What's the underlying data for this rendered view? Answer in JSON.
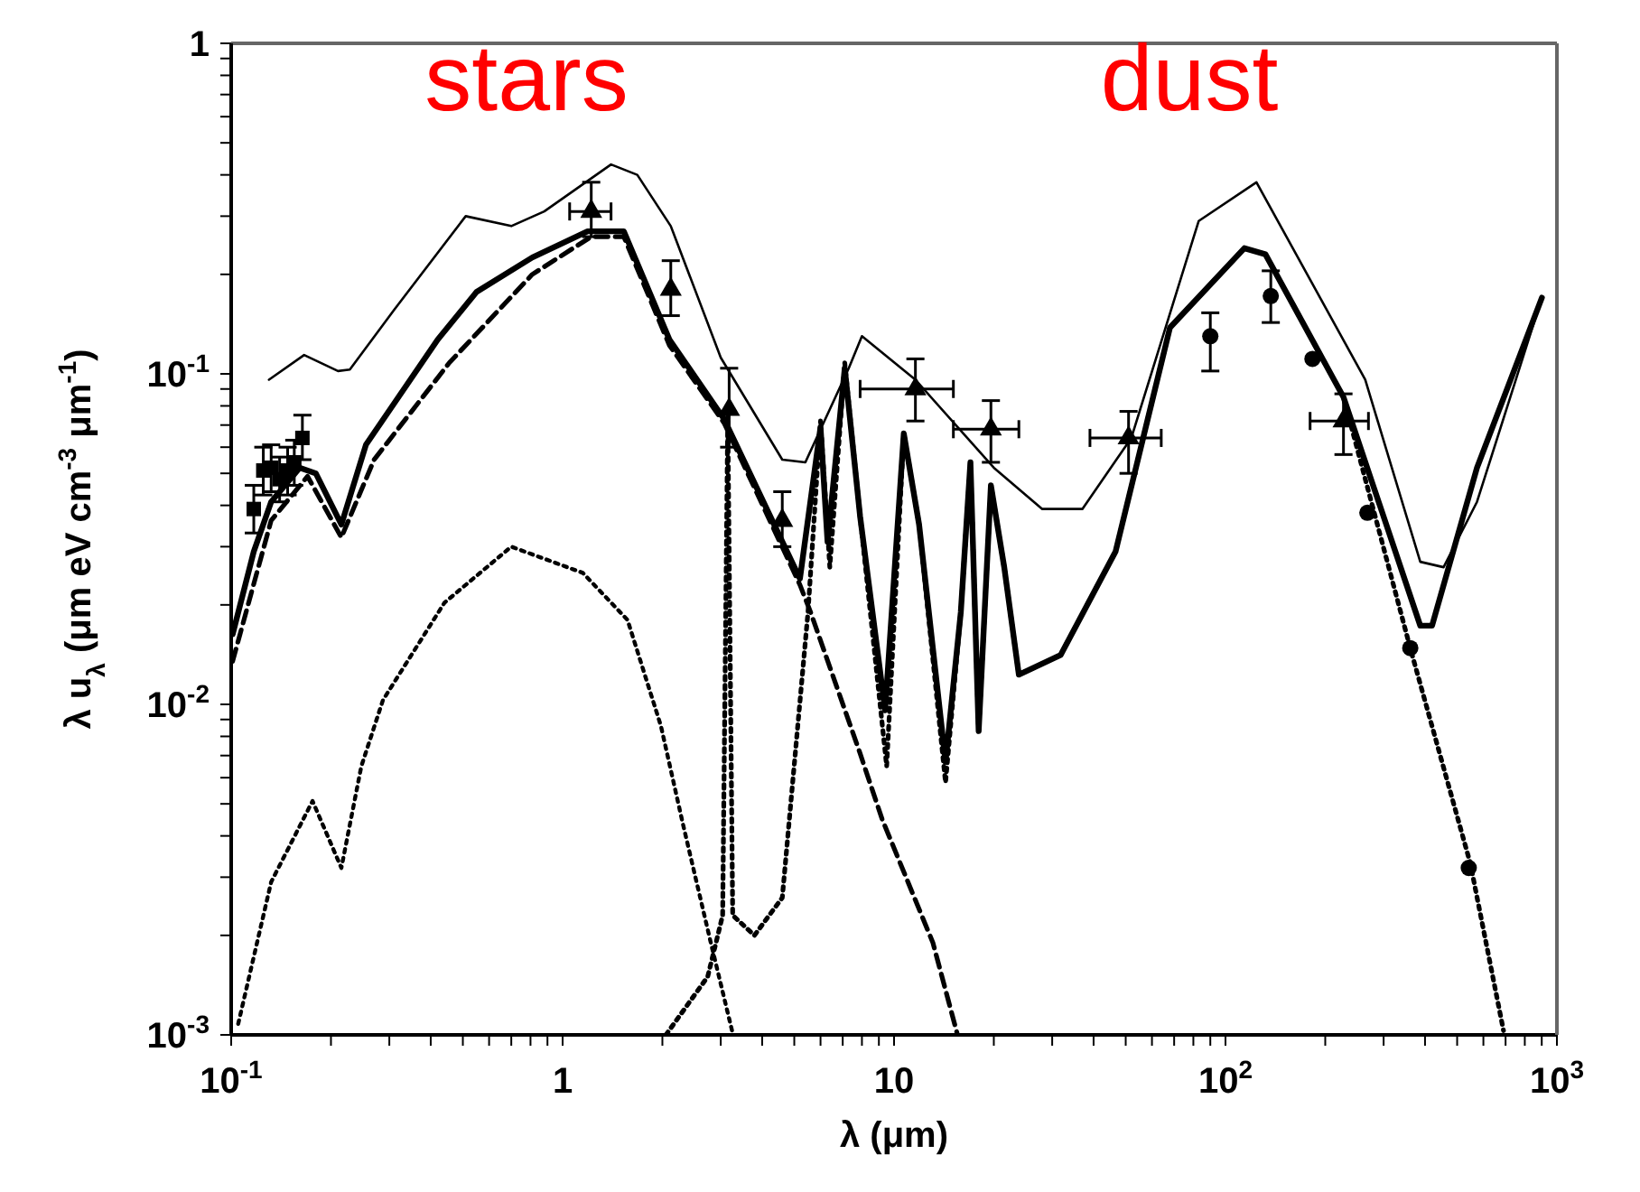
{
  "chart_data": {
    "type": "line",
    "xlabel": "λ (μm)",
    "ylabel": "λ u$_{λ}$ (μm eV cm$^{-3}$ μm$^{-1}$)",
    "log": "xy",
    "xlim": [
      0.1,
      1000
    ],
    "ylim": [
      0.001,
      1
    ],
    "xticks": [
      {
        "value": 0.1,
        "label": "10$^{-1}$"
      },
      {
        "value": 0.2,
        "label": null
      },
      {
        "value": 0.3,
        "label": null
      },
      {
        "value": 0.4,
        "label": null
      },
      {
        "value": 0.5,
        "label": null
      },
      {
        "value": 0.6,
        "label": null
      },
      {
        "value": 0.7,
        "label": null
      },
      {
        "value": 0.8,
        "label": null
      },
      {
        "value": 0.9,
        "label": null
      },
      1,
      {
        "value": 2,
        "label": null
      },
      {
        "value": 3,
        "label": null
      },
      {
        "value": 4,
        "label": null
      },
      {
        "value": 5,
        "label": null
      },
      {
        "value": 6,
        "label": null
      },
      {
        "value": 7,
        "label": null
      },
      {
        "value": 8,
        "label": null
      },
      {
        "value": 9,
        "label": null
      },
      10,
      {
        "value": 20,
        "label": null
      },
      {
        "value": 30,
        "label": null
      },
      {
        "value": 40,
        "label": null
      },
      {
        "value": 50,
        "label": null
      },
      {
        "value": 60,
        "label": null
      },
      {
        "value": 70,
        "label": null
      },
      {
        "value": 80,
        "label": null
      },
      {
        "value": 90,
        "label": null
      },
      {
        "value": 100,
        "label": "10$^{2}$"
      },
      {
        "value": 200,
        "label": null
      },
      {
        "value": 300,
        "label": null
      },
      {
        "value": 400,
        "label": null
      },
      {
        "value": 500,
        "label": null
      },
      {
        "value": 600,
        "label": null
      },
      {
        "value": 700,
        "label": null
      },
      {
        "value": 800,
        "label": null
      },
      {
        "value": 900,
        "label": null
      },
      {
        "value": 1000,
        "label": "10$^{3}$"
      }
    ],
    "yticks": [
      {
        "value": 0.001,
        "label": "10$^{-3}$"
      },
      {
        "value": 0.002,
        "label": null
      },
      {
        "value": 0.003,
        "label": null
      },
      {
        "value": 0.004,
        "label": null
      },
      {
        "value": 0.005,
        "label": null
      },
      {
        "value": 0.006,
        "label": null
      },
      {
        "value": 0.007,
        "label": null
      },
      {
        "value": 0.008,
        "label": null
      },
      {
        "value": 0.009,
        "label": null
      },
      {
        "value": 0.01,
        "label": "10$^{-2}$"
      },
      {
        "value": 0.02,
        "label": null
      },
      {
        "value": 0.03,
        "label": null
      },
      {
        "value": 0.04,
        "label": null
      },
      {
        "value": 0.05,
        "label": null
      },
      {
        "value": 0.06,
        "label": null
      },
      {
        "value": 0.07,
        "label": null
      },
      {
        "value": 0.08,
        "label": null
      },
      {
        "value": 0.09,
        "label": null
      },
      {
        "value": 0.1,
        "label": "10$^{-1}$"
      },
      {
        "value": 0.2,
        "label": null
      },
      {
        "value": 0.3,
        "label": null
      },
      {
        "value": 0.4,
        "label": null
      },
      {
        "value": 0.5,
        "label": null
      },
      {
        "value": 0.6,
        "label": null
      },
      {
        "value": 0.7,
        "label": null
      },
      {
        "value": 0.8,
        "label": null
      },
      {
        "value": 0.9,
        "label": null
      },
      1
    ],
    "annotations": [
      "stars",
      "dust"
    ],
    "series": [
      {
        "color": "#000000",
        "line_style": "solid",
        "marker": "none",
        "x": [
          0.13,
          0.166,
          0.21,
          0.228,
          0.31,
          0.51,
          0.7,
          0.88,
          1.4,
          1.68,
          2.12,
          3.0,
          4.6,
          5.4,
          7.3,
          8.0,
          11.6,
          20,
          28,
          37,
          52,
          83,
          124,
          264,
          387,
          455,
          574,
          901
        ],
        "values": [
          0.096,
          0.114,
          0.102,
          0.103,
          0.156,
          0.3,
          0.28,
          0.31,
          0.43,
          0.4,
          0.28,
          0.112,
          0.055,
          0.054,
          0.104,
          0.13,
          0.096,
          0.052,
          0.039,
          0.039,
          0.064,
          0.29,
          0.38,
          0.096,
          0.027,
          0.026,
          0.041,
          0.17
        ]
      },
      {
        "color": "#000000",
        "line_style": "solid",
        "marker": "none",
        "x": [
          0.101,
          0.117,
          0.132,
          0.161,
          0.18,
          0.215,
          0.255,
          0.42,
          0.55,
          0.81,
          1.19,
          1.53,
          2.1,
          3.07,
          5.2,
          6.0,
          6.3,
          7.1,
          7.9,
          9.4,
          10.7,
          11.9,
          14.3,
          15.9,
          17.0,
          18.0,
          19.6,
          21.5,
          23.8,
          31.8,
          46.6,
          68,
          114,
          132,
          227,
          387,
          420,
          574,
          901
        ],
        "values": [
          0.0163,
          0.029,
          0.041,
          0.052,
          0.05,
          0.035,
          0.061,
          0.127,
          0.177,
          0.225,
          0.27,
          0.27,
          0.127,
          0.073,
          0.024,
          0.069,
          0.031,
          0.104,
          0.037,
          0.0096,
          0.066,
          0.035,
          0.0067,
          0.019,
          0.054,
          0.0083,
          0.046,
          0.026,
          0.0123,
          0.0141,
          0.029,
          0.138,
          0.24,
          0.23,
          0.085,
          0.0173,
          0.0173,
          0.052,
          0.17
        ]
      },
      {
        "color": "#000000",
        "line_style": "dashed",
        "marker": "none",
        "x": [
          0.101,
          0.132,
          0.17,
          0.215,
          0.27,
          0.455,
          0.81,
          1.22,
          1.53,
          2.1,
          3.07,
          5.2,
          5.6,
          7.9,
          9.2,
          13.1,
          15.5
        ],
        "values": [
          0.0135,
          0.036,
          0.049,
          0.032,
          0.055,
          0.108,
          0.2,
          0.26,
          0.26,
          0.122,
          0.071,
          0.023,
          0.019,
          0.0071,
          0.0045,
          0.0019,
          0.00101
        ]
      },
      {
        "color": "#000000",
        "line_style": "dotted",
        "marker": "none",
        "x": [
          0.105,
          0.132,
          0.176,
          0.215,
          0.247,
          0.287,
          0.44,
          0.7,
          1.15,
          1.57,
          1.98,
          2.3,
          2.8,
          3.26
        ],
        "values": [
          0.00108,
          0.0029,
          0.0051,
          0.0032,
          0.0065,
          0.0103,
          0.0203,
          0.03,
          0.025,
          0.018,
          0.0086,
          0.0044,
          0.0019,
          0.00101
        ]
      },
      {
        "color": "#000000",
        "line_style": "dotted",
        "marker": "none",
        "x": [
          2.05,
          2.74,
          3.04,
          3.15,
          3.26,
          3.79,
          4.6,
          5.5,
          6.0,
          6.4,
          7.1,
          7.9,
          9.5,
          10.7,
          11.9,
          14.3,
          15.9,
          17.0,
          18.0,
          19.6,
          21.5,
          23.8,
          31.8,
          46.6,
          68,
          114,
          132,
          227,
          361,
          548,
          690
        ],
        "values": [
          0.001,
          0.0015,
          0.0023,
          0.075,
          0.0023,
          0.002,
          0.0026,
          0.019,
          0.072,
          0.026,
          0.108,
          0.037,
          0.0065,
          0.066,
          0.035,
          0.0058,
          0.019,
          0.054,
          0.0083,
          0.046,
          0.026,
          0.0123,
          0.0141,
          0.029,
          0.138,
          0.24,
          0.23,
          0.085,
          0.0148,
          0.0033,
          0.00103
        ]
      },
      {
        "type": "scatter",
        "color": "#000000",
        "marker": "square",
        "x": [
          0.117,
          0.125,
          0.132,
          0.14,
          0.148,
          0.155,
          0.164
        ],
        "values": [
          0.039,
          0.051,
          0.052,
          0.048,
          0.051,
          0.054,
          0.064
        ],
        "errors": [
          [
            0.033,
            0.046
          ],
          [
            0.043,
            0.06
          ],
          [
            0.044,
            0.061
          ],
          [
            0.041,
            0.056
          ],
          [
            0.043,
            0.06
          ],
          [
            0.046,
            0.063
          ],
          [
            0.055,
            0.075
          ]
        ]
      },
      {
        "type": "scatter",
        "color": "#000000",
        "marker": "triangle",
        "x": [
          1.22,
          2.12,
          3.18,
          4.6,
          11.6,
          19.6,
          51,
          227
        ],
        "values": [
          0.31,
          0.18,
          0.078,
          0.036,
          0.09,
          0.068,
          0.064,
          0.072
        ],
        "errors": [
          [
            0.26,
            0.38
          ],
          [
            0.15,
            0.22
          ],
          [
            0.06,
            0.104
          ],
          [
            0.03,
            0.044
          ],
          [
            0.072,
            0.111
          ],
          [
            0.054,
            0.083
          ],
          [
            0.05,
            0.077
          ],
          [
            0.057,
            0.087
          ]
        ],
        "xerrors": [
          [
            1.05,
            1.4
          ],
          null,
          null,
          null,
          [
            7.9,
            15.1
          ],
          [
            15.1,
            23.8
          ],
          [
            39,
            64
          ],
          [
            180,
            270
          ]
        ]
      },
      {
        "type": "scatter",
        "color": "#000000",
        "marker": "circle",
        "x": [
          90,
          137,
          183,
          268,
          361,
          542
        ],
        "values": [
          0.13,
          0.172,
          0.111,
          0.038,
          0.0148,
          0.0032
        ],
        "errors": [
          [
            0.102,
            0.153
          ],
          [
            0.143,
            0.205
          ],
          null,
          null,
          null,
          null
        ]
      }
    ]
  }
}
